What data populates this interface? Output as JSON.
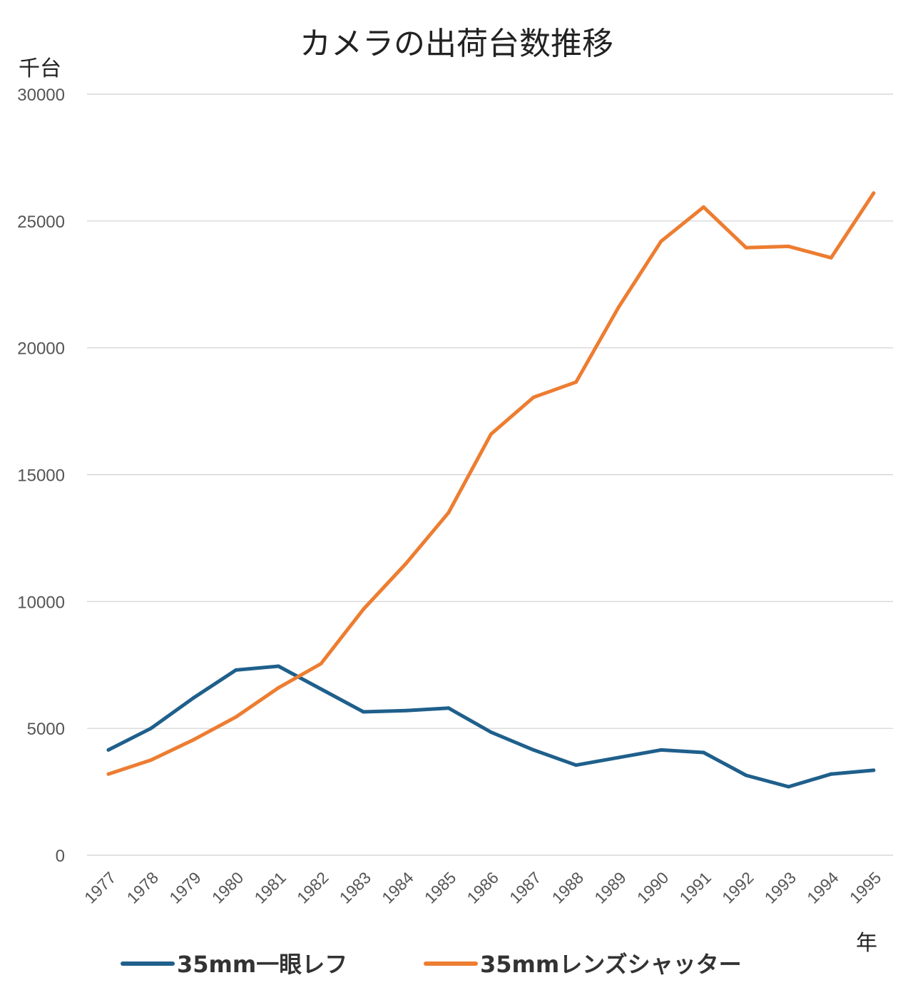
{
  "chart_data": {
    "type": "line",
    "title": "カメラの出荷台数推移",
    "ylabel": "千台",
    "xlabel": "年",
    "ylim": [
      0,
      30000
    ],
    "yticks": [
      0,
      5000,
      10000,
      15000,
      20000,
      25000,
      30000
    ],
    "grid": true,
    "legend_position": "bottom",
    "categories": [
      "1977",
      "1978",
      "1979",
      "1980",
      "1981",
      "1982",
      "1983",
      "1984",
      "1985",
      "1986",
      "1987",
      "1988",
      "1989",
      "1990",
      "1991",
      "1992",
      "1993",
      "1994",
      "1995"
    ],
    "series": [
      {
        "name": "35mm一眼レフ",
        "color": "#1f5f8b",
        "values": [
          4150,
          5000,
          6200,
          7300,
          7450,
          6550,
          5650,
          5700,
          5800,
          4850,
          4150,
          3550,
          3850,
          4150,
          4050,
          3150,
          2700,
          3200,
          3350
        ]
      },
      {
        "name": "35mmレンズシャッター",
        "color": "#ed7d31",
        "values": [
          3200,
          3750,
          4550,
          5450,
          6600,
          7550,
          9700,
          11500,
          13500,
          16600,
          18050,
          18650,
          21600,
          24200,
          25550,
          23950,
          24000,
          23550,
          26100
        ]
      }
    ]
  }
}
